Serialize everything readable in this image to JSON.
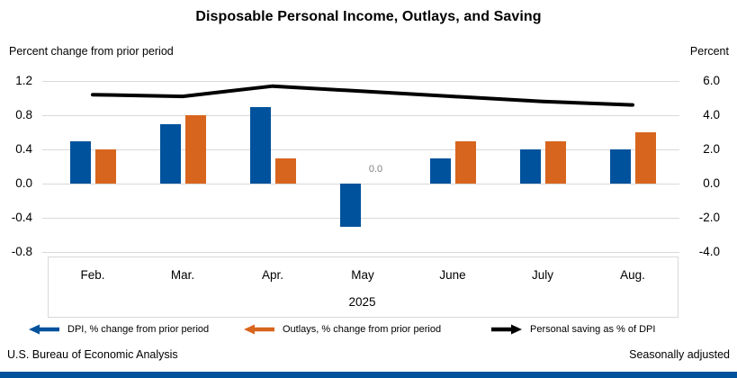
{
  "title": "Disposable Personal Income, Outlays, and Saving",
  "left_axis_title": "Percent change from prior period",
  "right_axis_title": "Percent",
  "footer": {
    "left": "U.S. Bureau of Economic Analysis",
    "right": "Seasonally adjusted"
  },
  "colors": {
    "dpi_blue": "#00529C",
    "outlays_orange": "#D8651D",
    "saving_black": "#000000",
    "gridline": "#D9D9D9",
    "zero_label_gray": "#808080",
    "bottom_band": "#00529C"
  },
  "chart_data": {
    "type": "bar+line",
    "categories": [
      "Feb.",
      "Mar.",
      "Apr.",
      "May",
      "June",
      "July",
      "Aug."
    ],
    "year_label": "2025",
    "series": [
      {
        "name": "DPI, % change from prior period",
        "type": "bar",
        "axis": "left",
        "values": [
          0.5,
          0.7,
          0.9,
          -0.5,
          0.3,
          0.4,
          0.4
        ]
      },
      {
        "name": "Outlays, % change from prior period",
        "type": "bar",
        "axis": "left",
        "values": [
          0.4,
          0.8,
          0.3,
          0.0,
          0.5,
          0.5,
          0.6
        ]
      },
      {
        "name": "Personal saving as % of DPI",
        "type": "line",
        "axis": "right",
        "values": [
          5.2,
          5.1,
          5.7,
          5.4,
          5.1,
          4.8,
          4.6
        ]
      }
    ],
    "left_axis_ticks": [
      "1.2",
      "0.8",
      "0.4",
      "0.0",
      "-0.4",
      "-0.8"
    ],
    "right_axis_ticks": [
      "6.0",
      "4.0",
      "2.0",
      "0.0",
      "-2.0",
      "-4.0"
    ],
    "left_ylim": [
      -0.8,
      1.2
    ],
    "right_ylim": [
      -4.0,
      6.0
    ],
    "grid": true,
    "legend_position": "bottom",
    "data_labels": [
      {
        "series_index": 1,
        "category_index": 3,
        "text": "0.0"
      }
    ]
  },
  "legend": [
    {
      "label": "DPI, % change from prior period",
      "marker": "left-arrow",
      "color_key": "dpi_blue"
    },
    {
      "label": "Outlays, % change from prior period",
      "marker": "left-arrow",
      "color_key": "outlays_orange"
    },
    {
      "label": "Personal saving as % of DPI",
      "marker": "right-arrow",
      "color_key": "saving_black"
    }
  ]
}
